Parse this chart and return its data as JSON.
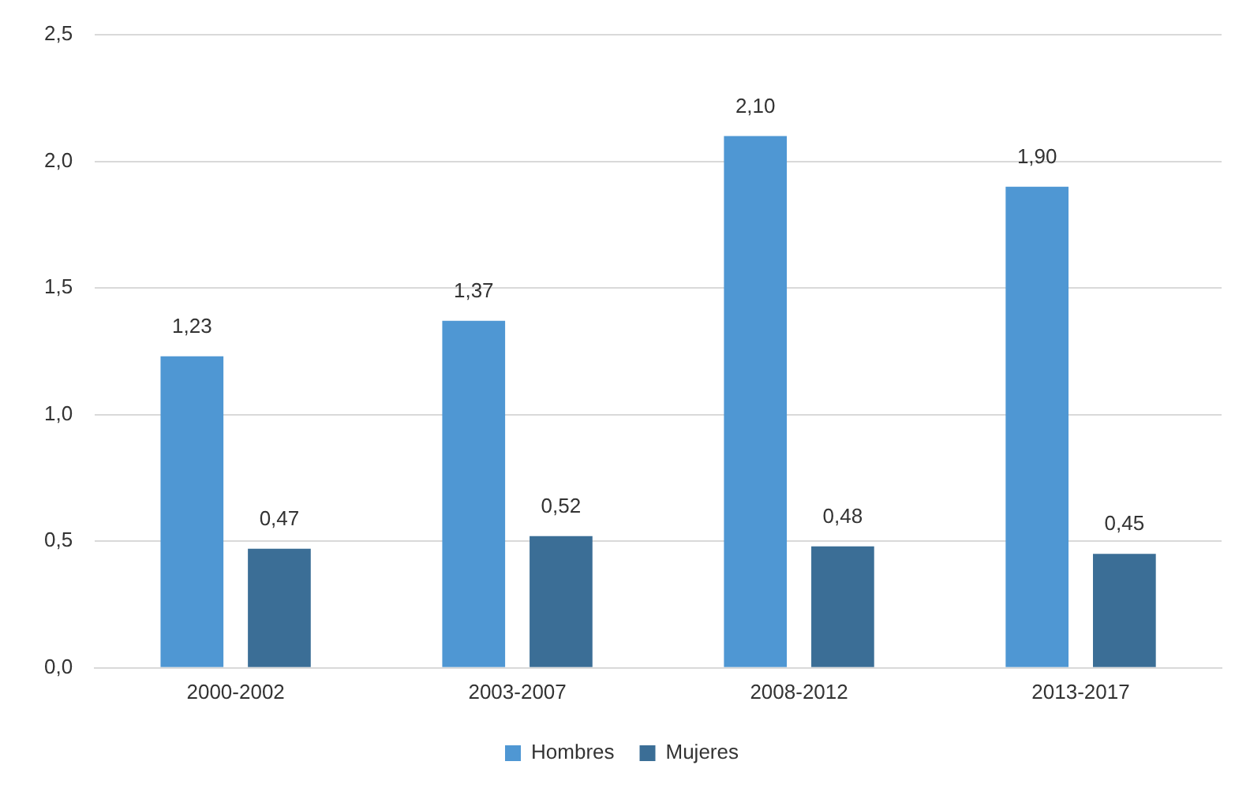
{
  "chart_data": {
    "type": "bar",
    "categories": [
      "2000-2002",
      "2003-2007",
      "2008-2012",
      "2013-2017"
    ],
    "series": [
      {
        "name": "Hombres",
        "color": "#4f97d3",
        "values": [
          1.23,
          1.37,
          2.1,
          1.9
        ],
        "value_labels": [
          "1,23",
          "1,37",
          "2,10",
          "1,90"
        ]
      },
      {
        "name": "Mujeres",
        "color": "#3b6e96",
        "values": [
          0.47,
          0.52,
          0.48,
          0.45
        ],
        "value_labels": [
          "0,47",
          "0,52",
          "0,48",
          "0,45"
        ]
      }
    ],
    "ylim": [
      0,
      2.5
    ],
    "yticks": [
      {
        "value": 0,
        "label": "0,0"
      },
      {
        "value": 0.5,
        "label": "0,5"
      },
      {
        "value": 1,
        "label": "1,0"
      },
      {
        "value": 1.5,
        "label": "1,5"
      },
      {
        "value": 2,
        "label": "2,0"
      },
      {
        "value": 2.5,
        "label": "2,5"
      }
    ],
    "grid": "y",
    "legend": "bottom"
  }
}
